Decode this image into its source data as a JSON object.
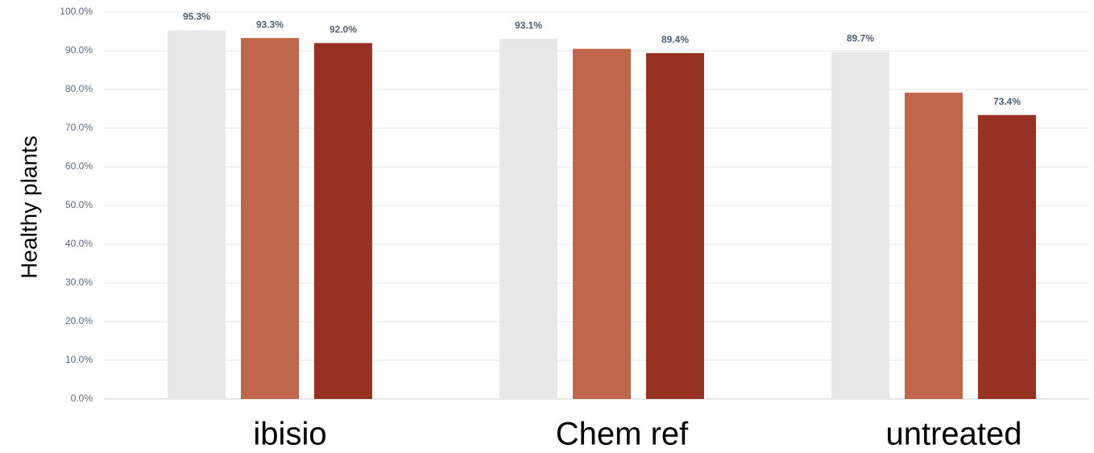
{
  "chart_data": {
    "type": "bar",
    "y_label": "Healthy plants",
    "categories": [
      "ibisio",
      "Chem ref",
      "untreated"
    ],
    "series": [
      {
        "color": "#e7e8ea",
        "values": [
          95.3,
          93.1,
          89.7
        ],
        "value_labels": [
          "95.3%",
          "93.1%",
          "89.7%"
        ]
      },
      {
        "color": "#c0674b",
        "values": [
          93.3,
          90.5,
          79.2
        ],
        "value_labels": [
          "93.3%",
          null,
          null
        ]
      },
      {
        "color": "#973122",
        "values": [
          92.0,
          89.4,
          73.4
        ],
        "value_labels": [
          "92.0%",
          "89.4%",
          "73.4%"
        ]
      }
    ],
    "ylim": [
      0,
      100
    ],
    "yticks": [
      {
        "value": 0,
        "label": "0.0%"
      },
      {
        "value": 10,
        "label": "10.0%"
      },
      {
        "value": 20,
        "label": "20.0%"
      },
      {
        "value": 30,
        "label": "30.0%"
      },
      {
        "value": 40,
        "label": "40.0%"
      },
      {
        "value": 50,
        "label": "50.0%"
      },
      {
        "value": 60,
        "label": "60.0%"
      },
      {
        "value": 70,
        "label": "70.0%"
      },
      {
        "value": 80,
        "label": "80.0%"
      },
      {
        "value": 90,
        "label": "90.0%"
      },
      {
        "value": {
          "value": 100
        },
        "label": "100.0%"
      }
    ],
    "grid": true
  }
}
